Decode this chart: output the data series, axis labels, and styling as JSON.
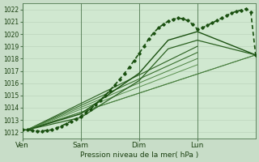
{
  "xlabel": "Pression niveau de la mer( hPa )",
  "bg_color": "#c8ddc8",
  "grid_color_minor": "#b8cfb8",
  "grid_color_major": "#90b090",
  "plot_area_color": "#d0e8d0",
  "ylim": [
    1011.5,
    1022.5
  ],
  "xlim": [
    0,
    96
  ],
  "yticks": [
    1012,
    1013,
    1014,
    1015,
    1016,
    1017,
    1018,
    1019,
    1020,
    1021,
    1022
  ],
  "xtick_positions": [
    0,
    24,
    48,
    72
  ],
  "xtick_labels": [
    "Ven",
    "Sam",
    "Dim",
    "Lun"
  ],
  "vline_positions": [
    0,
    24,
    48,
    72
  ],
  "series_straight": [
    {
      "x": [
        2,
        96
      ],
      "y": [
        1012.2,
        1018.3
      ],
      "color": "#4a8040",
      "lw": 0.7
    },
    {
      "x": [
        2,
        96
      ],
      "y": [
        1012.2,
        1018.3
      ],
      "color": "#4a8040",
      "lw": 0.7
    },
    {
      "x": [
        2,
        72
      ],
      "y": [
        1012.2,
        1019.0
      ],
      "color": "#2a6020",
      "lw": 0.8
    },
    {
      "x": [
        2,
        72
      ],
      "y": [
        1012.2,
        1018.5
      ],
      "color": "#3a7030",
      "lw": 0.8
    },
    {
      "x": [
        2,
        72
      ],
      "y": [
        1012.2,
        1018.0
      ],
      "color": "#4a8040",
      "lw": 0.7
    },
    {
      "x": [
        2,
        72
      ],
      "y": [
        1012.2,
        1017.5
      ],
      "color": "#5a9050",
      "lw": 0.7
    }
  ],
  "main_line": {
    "x": [
      0,
      2,
      4,
      6,
      8,
      10,
      12,
      14,
      16,
      18,
      20,
      22,
      24,
      26,
      28,
      30,
      32,
      34,
      36,
      38,
      40,
      42,
      44,
      46,
      48,
      50,
      52,
      54,
      56,
      58,
      60,
      62,
      64,
      66,
      68,
      70,
      72,
      74,
      76,
      78,
      80,
      82,
      84,
      86,
      88,
      90,
      92,
      94,
      96
    ],
    "y": [
      1012.2,
      1012.2,
      1012.15,
      1012.1,
      1012.1,
      1012.15,
      1012.2,
      1012.35,
      1012.5,
      1012.7,
      1012.9,
      1013.1,
      1013.3,
      1013.6,
      1013.9,
      1014.25,
      1014.6,
      1015.0,
      1015.4,
      1015.85,
      1016.3,
      1016.8,
      1017.3,
      1017.85,
      1018.4,
      1019.0,
      1019.6,
      1020.1,
      1020.5,
      1020.8,
      1021.05,
      1021.2,
      1021.3,
      1021.25,
      1021.1,
      1020.8,
      1020.4,
      1020.5,
      1020.7,
      1020.9,
      1021.1,
      1021.3,
      1021.5,
      1021.7,
      1021.85,
      1021.95,
      1022.05,
      1021.8,
      1018.3
    ],
    "color": "#1a5010",
    "lw": 1.2,
    "marker": "D",
    "ms": 1.8
  },
  "triangle_line1": {
    "x": [
      2,
      24,
      48,
      60,
      72,
      96
    ],
    "y": [
      1012.2,
      1013.5,
      1016.8,
      1019.5,
      1020.2,
      1018.3
    ],
    "color": "#1a5010",
    "lw": 1.0
  },
  "triangle_line2": {
    "x": [
      2,
      24,
      48,
      60,
      72,
      96
    ],
    "y": [
      1012.2,
      1013.2,
      1016.2,
      1018.8,
      1019.5,
      1018.3
    ],
    "color": "#2a6020",
    "lw": 0.9
  }
}
